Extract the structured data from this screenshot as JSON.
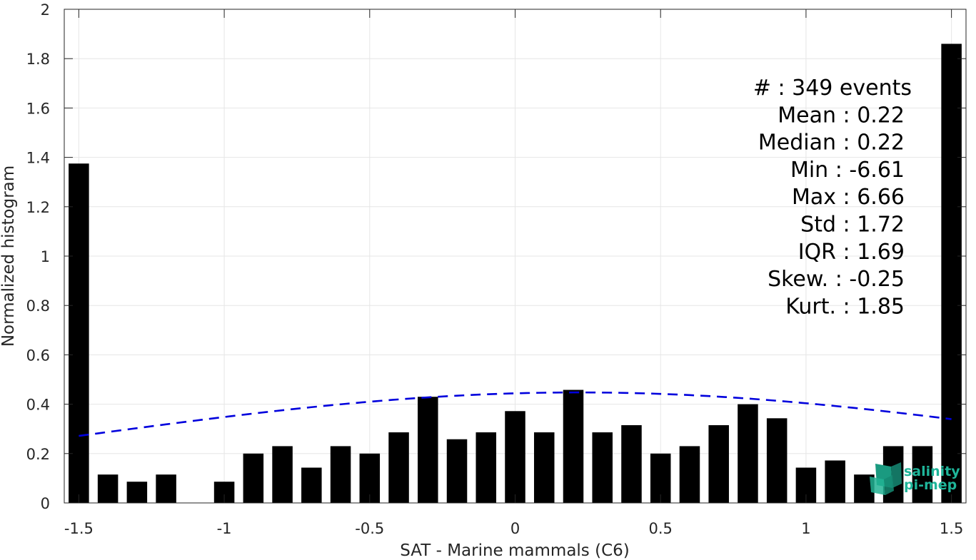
{
  "chart_data": {
    "type": "bar",
    "xlabel": "SAT - Marine mammals (C6)",
    "ylabel": "Normalized histogram",
    "xlim": [
      -1.55,
      1.55
    ],
    "ylim": [
      0,
      2
    ],
    "xticks": [
      -1.5,
      -1,
      -0.5,
      0,
      0.5,
      1,
      1.5
    ],
    "xtick_labels": [
      "-1.5",
      "-1",
      "-0.5",
      "0",
      "0.5",
      "1",
      "1.5"
    ],
    "yticks": [
      0,
      0.2,
      0.4,
      0.6,
      0.8,
      1,
      1.2,
      1.4,
      1.6,
      1.8,
      2
    ],
    "ytick_labels": [
      "0",
      "0.2",
      "0.4",
      "0.6",
      "0.8",
      "1",
      "1.2",
      "1.4",
      "1.6",
      "1.8",
      "2"
    ],
    "grid": true,
    "bar_color": "#000000",
    "x": [
      -1.5,
      -1.4,
      -1.3,
      -1.2,
      -1.1,
      -1.0,
      -0.9,
      -0.8,
      -0.7,
      -0.6,
      -0.5,
      -0.4,
      -0.3,
      -0.2,
      -0.1,
      0.0,
      0.1,
      0.2,
      0.3,
      0.4,
      0.5,
      0.6,
      0.7,
      0.8,
      0.9,
      1.0,
      1.1,
      1.2,
      1.3,
      1.4,
      1.5
    ],
    "values": [
      1.375,
      0.115,
      0.086,
      0.115,
      0,
      0.086,
      0.2,
      0.23,
      0.143,
      0.23,
      0.2,
      0.286,
      0.43,
      0.258,
      0.286,
      0.372,
      0.286,
      0.458,
      0.286,
      0.315,
      0.2,
      0.23,
      0.315,
      0.4,
      0.343,
      0.143,
      0.172,
      0.115,
      0.23,
      0.23,
      1.86
    ],
    "fit_curve": {
      "type": "normal",
      "mean": 0.22,
      "std": 1.72,
      "style": "dashed",
      "color": "#0000dd",
      "x_range": [
        -1.5,
        1.5
      ]
    },
    "stats": [
      "#  : 349 events",
      "Mean : 0.22",
      "Median : 0.22",
      "Min : -6.61",
      "Max : 6.66",
      "Std : 1.72",
      "IQR : 1.69",
      "Skew. : -0.25",
      "Kurt. : 1.85"
    ]
  },
  "logo": {
    "line1": "salinity",
    "line2": "pi-mep",
    "color": "#1fb59a"
  }
}
